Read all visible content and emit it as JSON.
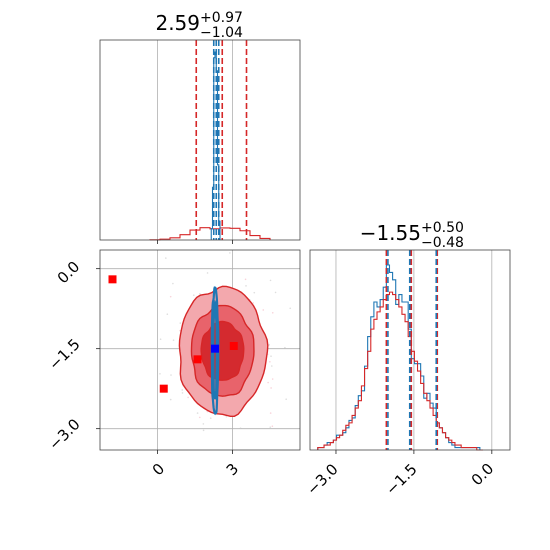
{
  "chart_data": {
    "type": "corner",
    "panels": [
      {
        "position": "top-left",
        "type": "histogram",
        "parameter_index": 0,
        "title": {
          "median": "2.59",
          "plus": "+0.97",
          "minus": "−1.04"
        },
        "xlim": [
          -2.3,
          5.7
        ],
        "x_ticks": [
          0,
          3
        ],
        "grid": true,
        "quantile_lines": {
          "red": [
            1.55,
            2.59,
            3.56
          ],
          "blue": [
            2.25,
            2.35,
            2.45
          ]
        },
        "series": [
          {
            "name": "",
            "color": "#d62728",
            "bin_edges": [
              -0.3,
              0.1,
              0.5,
              0.9,
              1.3,
              1.7,
              2.1,
              2.5,
              2.9,
              3.3,
              3.7,
              4.1,
              4.5
            ],
            "counts": [
              0.1,
              0.4,
              1.0,
              2.4,
              4.5,
              5.6,
              5.1,
              5.5,
              5.3,
              4.2,
              2.0,
              0.7
            ]
          },
          {
            "name": "",
            "color": "#1f77b4",
            "bin_edges": [
              2.15,
              2.2,
              2.25,
              2.3,
              2.35,
              2.4,
              2.45,
              2.5
            ],
            "counts": [
              6,
              28,
              97,
              100,
              90,
              40,
              10
            ]
          }
        ]
      },
      {
        "position": "bottom-left",
        "type": "2d-density",
        "x_parameter": 0,
        "y_parameter": 1,
        "xlim": [
          -2.3,
          5.7
        ],
        "ylim": [
          -3.4,
          0.35
        ],
        "x_ticks": [
          0,
          3
        ],
        "x_tick_labels": [
          "0",
          "3"
        ],
        "y_ticks": [
          0.0,
          -1.5,
          -3.0
        ],
        "y_tick_labels": [
          "0.0",
          "−1.5",
          "−3.0"
        ],
        "grid": true,
        "red_contours": {
          "color": "#d62728",
          "center": [
            2.6,
            -1.55
          ],
          "levels": [
            {
              "half_width": 1.75,
              "half_height": 1.2
            },
            {
              "half_width": 1.25,
              "half_height": 0.85
            },
            {
              "half_width": 0.85,
              "half_height": 0.55
            }
          ]
        },
        "blue_contours": {
          "color": "#1f77b4",
          "center": [
            2.3,
            -1.55
          ],
          "levels": [
            {
              "half_width": 0.13,
              "half_height": 1.18
            },
            {
              "half_width": 0.07,
              "half_height": 0.9
            }
          ]
        },
        "red_markers": [
          {
            "x": -1.8,
            "y": -0.2
          },
          {
            "x": 0.25,
            "y": -2.25
          },
          {
            "x": 1.6,
            "y": -1.7
          },
          {
            "x": 3.05,
            "y": -1.45
          }
        ],
        "blue_markers": [
          {
            "x": 2.3,
            "y": -1.5
          }
        ]
      },
      {
        "position": "bottom-right",
        "type": "histogram",
        "parameter_index": 1,
        "title": {
          "median": "−1.55",
          "plus": "+0.50",
          "minus": "−0.48"
        },
        "xlim": [
          -3.5,
          0.35
        ],
        "x_ticks": [
          -3.0,
          -1.5,
          0.0
        ],
        "x_tick_labels": [
          "−3.0",
          "−1.5",
          "0.0"
        ],
        "grid": true,
        "quantile_lines": {
          "red": [
            -2.03,
            -1.55,
            -1.05
          ],
          "blue": [
            -2.0,
            -1.58,
            -1.07
          ]
        },
        "series": [
          {
            "name": "",
            "color": "#1f77b4",
            "bin_start": -3.35,
            "bin_width": 0.06,
            "counts": [
              1,
              1,
              2,
              3,
              3,
              4,
              6,
              6,
              7,
              9,
              12,
              13,
              18,
              22,
              24,
              34,
              46,
              54,
              60,
              58,
              61,
              66,
              75,
              72,
              69,
              59,
              63,
              60,
              60,
              49,
              37,
              35,
              35,
              30,
              21,
              23,
              19,
              17,
              11,
              9,
              7,
              5,
              3,
              2,
              1,
              1,
              1,
              1,
              1,
              1,
              1,
              1,
              0
            ]
          },
          {
            "name": "",
            "color": "#d62728",
            "bin_start": -3.35,
            "bin_width": 0.06,
            "counts": [
              1,
              1,
              2,
              2,
              3,
              4,
              5,
              6,
              8,
              10,
              11,
              14,
              17,
              20,
              26,
              33,
              40,
              49,
              53,
              56,
              58,
              61,
              63,
              64,
              63,
              61,
              58,
              55,
              52,
              46,
              40,
              36,
              32,
              27,
              23,
              20,
              17,
              14,
              11,
              9,
              7,
              5,
              4,
              3,
              2,
              2,
              1,
              1,
              1,
              1,
              1,
              0,
              0
            ]
          }
        ]
      }
    ]
  }
}
